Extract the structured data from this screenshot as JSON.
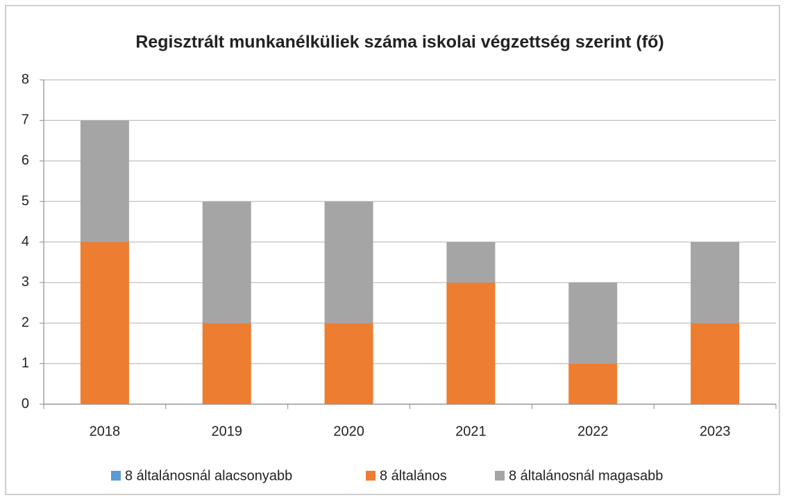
{
  "chart_data": {
    "type": "bar",
    "stacked": true,
    "title": "Regisztrált munkanélküliek száma iskolai végzettség szerint (fő)",
    "categories": [
      "2018",
      "2019",
      "2020",
      "2021",
      "2022",
      "2023"
    ],
    "series": [
      {
        "name": "8 általánosnál alacsonyabb",
        "color": "#5b9bd5",
        "values": [
          0,
          0,
          0,
          0,
          0,
          0
        ]
      },
      {
        "name": "8 általános",
        "color": "#ed7d31",
        "values": [
          4,
          2,
          2,
          3,
          1,
          2
        ]
      },
      {
        "name": "8 általánosnál magasabb",
        "color": "#a5a5a5",
        "values": [
          3,
          3,
          3,
          1,
          2,
          2
        ]
      }
    ],
    "ylim": [
      0,
      8
    ],
    "yticks": [
      0,
      1,
      2,
      3,
      4,
      5,
      6,
      7,
      8
    ],
    "grid": true,
    "legend": "bottom"
  }
}
